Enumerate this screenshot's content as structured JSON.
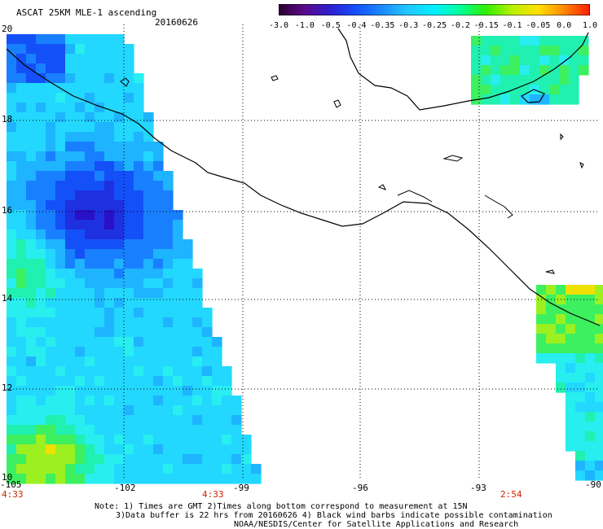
{
  "header": {
    "title": "ASCAT 25KM MLE-1 ascending",
    "date": "20160626"
  },
  "colorbar": {
    "labels": [
      "-3.0",
      "-1.0",
      "-0.5",
      "-0.4",
      "-0.35",
      "-0.3",
      "-0.25",
      "-0.2",
      "-0.15",
      "-0.1",
      "-0.05",
      "0.0",
      "1.0"
    ],
    "colors": [
      "#2a0030",
      "#5b0a8a",
      "#2c1fd0",
      "#1450ff",
      "#1a8cff",
      "#22c8ff",
      "#00f0ff",
      "#00ff9a",
      "#30f000",
      "#b8f000",
      "#ffe000",
      "#ff8800",
      "#ff1a00"
    ]
  },
  "axes": {
    "lat_labels": [
      "20",
      "18",
      "16",
      "14",
      "12",
      "10"
    ],
    "lon_labels": [
      "-105",
      "-102",
      "-99",
      "-96",
      "-93",
      "-90"
    ],
    "lon_range": [
      -105,
      -90
    ],
    "lat_range": [
      10,
      20
    ]
  },
  "times": [
    "4:33",
    "4:33",
    "2:54"
  ],
  "notes": {
    "line1": "Note: 1) Times are GMT 2)Times along bottom correspond to measurement at 15N",
    "line2": "3)Data buffer is 22 hrs from 20160626 4) Black wind barbs indicate possible contamination",
    "line3": "NOAA/NESDIS/Center for Satellite Applications and Research"
  }
}
